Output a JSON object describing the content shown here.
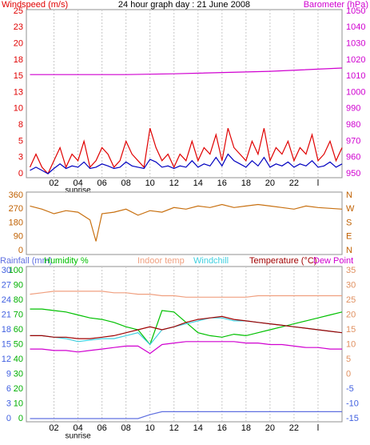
{
  "chart_data": [
    {
      "type": "line",
      "title": "24 hour graph day : 21 June 2008",
      "y_label": "Windspeed (m/s)",
      "y2_label": "Barometer (hPa)",
      "annotation": "sunrise",
      "annotation_x": 4,
      "xlim": [
        -0.3,
        26
      ],
      "xticks": [
        {
          "value": 2,
          "label": "02"
        },
        {
          "value": 4,
          "label": "04"
        },
        {
          "value": 6,
          "label": "06"
        },
        {
          "value": 8,
          "label": "08"
        },
        10,
        12,
        14,
        16,
        18,
        20,
        22,
        {
          "value": 24,
          "label": "l"
        }
      ],
      "ylim": [
        0,
        25
      ],
      "yticks": [
        0,
        {
          "value": 2.5,
          "label": "3"
        },
        5,
        {
          "value": 7.5,
          "label": "8"
        },
        10,
        {
          "value": 12.5,
          "label": "13"
        },
        15,
        {
          "value": 17.5,
          "label": "18"
        },
        20,
        {
          "value": 22.5,
          "label": "23"
        },
        25
      ],
      "y2lim": [
        950,
        1050
      ],
      "y2ticks": [
        950,
        960,
        970,
        980,
        990,
        1000,
        1010,
        1020,
        1030,
        1040,
        1050
      ],
      "y_color": "#e00000",
      "y2_color": "#d000d0",
      "series": [
        {
          "color": "#e00000",
          "axis": "y",
          "x": [
            0,
            0.5,
            1,
            1.5,
            2,
            2.5,
            3,
            3.5,
            4,
            4.5,
            5,
            5.5,
            6,
            6.5,
            7,
            7.5,
            8,
            8.5,
            9,
            9.5,
            10,
            10.5,
            11,
            11.5,
            12,
            12.5,
            13,
            13.5,
            14,
            14.5,
            15,
            15.5,
            16,
            16.5,
            17,
            17.5,
            18,
            18.5,
            19,
            19.5,
            20,
            20.5,
            21,
            21.5,
            22,
            22.5,
            23,
            23.5,
            24,
            24.5,
            25,
            25.5,
            26
          ],
          "values": [
            1,
            3,
            1,
            0,
            2,
            4,
            1,
            3,
            2,
            5,
            1,
            2,
            4,
            3,
            1,
            2,
            5,
            3,
            2,
            1,
            7,
            4,
            2,
            3,
            1,
            3,
            2,
            5,
            2,
            4,
            3,
            6,
            2,
            7,
            4,
            3,
            2,
            5,
            3,
            7,
            2,
            4,
            3,
            5,
            2,
            4,
            3,
            6,
            2,
            3,
            5,
            2,
            4
          ]
        },
        {
          "color": "#0000c0",
          "axis": "y",
          "x": [
            0,
            0.5,
            1,
            1.5,
            2,
            2.5,
            3,
            3.5,
            4,
            4.5,
            5,
            5.5,
            6,
            6.5,
            7,
            7.5,
            8,
            8.5,
            9,
            9.5,
            10,
            10.5,
            11,
            11.5,
            12,
            12.5,
            13,
            13.5,
            14,
            14.5,
            15,
            15.5,
            16,
            16.5,
            17,
            17.5,
            18,
            18.5,
            19,
            19.5,
            20,
            20.5,
            21,
            21.5,
            22,
            22.5,
            23,
            23.5,
            24,
            24.5,
            25,
            25.5,
            26
          ],
          "values": [
            0.5,
            1,
            0.5,
            0,
            0.8,
            1.5,
            0.8,
            1.2,
            1,
            1.8,
            0.8,
            1,
            1.5,
            1.2,
            0.8,
            1,
            1.8,
            1.2,
            1,
            0.8,
            2.2,
            1.8,
            1,
            1.2,
            0.8,
            1.2,
            1,
            2,
            1,
            1.5,
            1.2,
            2.5,
            1.2,
            3,
            2,
            1.5,
            1,
            2,
            1.2,
            2.5,
            1,
            1.5,
            1.2,
            1.8,
            1,
            1.5,
            1.2,
            2,
            1,
            1.2,
            1.8,
            1,
            1.5
          ]
        },
        {
          "color": "#d000d0",
          "axis": "y2",
          "x": [
            0,
            8,
            12,
            20,
            26
          ],
          "values": [
            1011,
            1011,
            1011.5,
            1013,
            1015
          ]
        }
      ]
    },
    {
      "type": "line",
      "xlim": [
        -0.3,
        26
      ],
      "ylim": [
        0,
        360
      ],
      "yticks": [
        0,
        90,
        180,
        270,
        360
      ],
      "y2ticks": [
        {
          "value": 0,
          "label": "N"
        },
        {
          "value": 90,
          "label": "E"
        },
        {
          "value": 180,
          "label": "S"
        },
        {
          "value": 270,
          "label": "W"
        },
        {
          "value": 360,
          "label": "N"
        }
      ],
      "y_color": "#c06000",
      "y2_color": "#c06000",
      "series": [
        {
          "color": "#c87010",
          "axis": "y",
          "x": [
            0,
            1,
            2,
            3,
            4,
            5,
            5.5,
            6,
            7,
            8,
            9,
            10,
            11,
            12,
            13,
            14,
            15,
            16,
            17,
            18,
            19,
            20,
            21,
            22,
            23,
            24,
            26
          ],
          "values": [
            290,
            270,
            240,
            260,
            250,
            200,
            60,
            240,
            250,
            270,
            230,
            260,
            250,
            280,
            270,
            290,
            280,
            300,
            280,
            290,
            300,
            290,
            280,
            270,
            290,
            280,
            270
          ]
        }
      ]
    },
    {
      "type": "line",
      "annotation": "sunrise",
      "annotation_x": 4,
      "xlim": [
        -0.3,
        26
      ],
      "xticks": [
        {
          "value": 2,
          "label": "02"
        },
        {
          "value": 4,
          "label": "04"
        },
        {
          "value": 6,
          "label": "06"
        },
        {
          "value": 8,
          "label": "08"
        },
        10,
        12,
        14,
        16,
        18,
        20,
        22,
        {
          "value": 24,
          "label": "l"
        }
      ],
      "ylim": [
        0,
        100
      ],
      "yticks": [
        0,
        10,
        20,
        30,
        40,
        50,
        60,
        70,
        80,
        90,
        100
      ],
      "y3lim": [
        0,
        30
      ],
      "y3ticks": [
        0,
        3,
        6,
        9,
        12,
        15,
        18,
        21,
        24,
        27,
        30
      ],
      "y2lim": [
        -15,
        35
      ],
      "y2ticks": [
        -15,
        -10,
        -5,
        0,
        5,
        10,
        15,
        20,
        25,
        30,
        35
      ],
      "y_color": "#00b000",
      "y3_color": "#4060e0",
      "y2_color": "#e09060",
      "series": [
        {
          "name": "Rainfall (mm)",
          "color": "#6070e0",
          "axis": "y3",
          "x": [
            0,
            1,
            2,
            3,
            4,
            5,
            6,
            7,
            8,
            9,
            10,
            11,
            12,
            13,
            14,
            15,
            16,
            17,
            18,
            19,
            20,
            21,
            22,
            23,
            24,
            25,
            26
          ],
          "values": [
            0,
            0,
            0,
            0,
            0,
            0,
            0,
            0,
            0,
            0,
            0.8,
            1.4,
            1.4,
            1.4,
            1.4,
            1.4,
            1.4,
            1.4,
            1.4,
            1.4,
            1.4,
            1.4,
            1.4,
            1.4,
            1.4,
            1.4,
            1.4
          ]
        },
        {
          "name": "Humidity %",
          "color": "#00c000",
          "axis": "y",
          "x": [
            0,
            1,
            2,
            3,
            4,
            5,
            6,
            7,
            8,
            9,
            10,
            11,
            12,
            13,
            14,
            15,
            16,
            17,
            18,
            19,
            20,
            21,
            22,
            23,
            24,
            25,
            26
          ],
          "values": [
            74,
            74,
            73,
            72,
            70,
            68,
            67,
            65,
            62,
            60,
            50,
            73,
            72,
            65,
            58,
            56,
            55,
            57,
            56,
            58,
            60,
            62,
            64,
            66,
            68,
            70,
            72
          ]
        },
        {
          "name": "Indoor temp",
          "color": "#f0a080",
          "axis": "y2",
          "x": [
            0,
            1,
            2,
            3,
            4,
            5,
            6,
            7,
            8,
            9,
            10,
            11,
            12,
            13,
            14,
            15,
            16,
            17,
            18,
            19,
            20,
            21,
            22,
            23,
            24,
            25,
            26
          ],
          "values": [
            27,
            27.5,
            28,
            28,
            28,
            28,
            28,
            27.5,
            27.5,
            27,
            27,
            26.5,
            26.5,
            26,
            26,
            26,
            26,
            26,
            26,
            26.5,
            26.5,
            26.5,
            26.5,
            26.5,
            26.5,
            26.5,
            26.5
          ]
        },
        {
          "name": "Windchill",
          "color": "#40d0e0",
          "axis": "y2",
          "x": [
            0,
            1,
            2,
            3,
            4,
            5,
            6,
            7,
            8,
            9,
            10,
            11,
            12,
            13,
            14,
            15,
            16,
            17,
            18,
            19,
            20,
            21,
            22,
            23,
            24,
            25,
            26
          ],
          "values": [
            13,
            13,
            12.5,
            12,
            11,
            11.5,
            12,
            12,
            13,
            14,
            10,
            15,
            16,
            17,
            18,
            19,
            19,
            18,
            18,
            17.5,
            17,
            16.5,
            16,
            15.5,
            15,
            14.5,
            14
          ]
        },
        {
          "name": "Temperature (°C)",
          "color": "#a00000",
          "axis": "y2",
          "x": [
            0,
            1,
            2,
            3,
            4,
            5,
            6,
            7,
            8,
            9,
            10,
            11,
            12,
            13,
            14,
            15,
            16,
            17,
            18,
            19,
            20,
            21,
            22,
            23,
            24,
            25,
            26
          ],
          "values": [
            13,
            13,
            12.5,
            12.5,
            12,
            12,
            12.5,
            13,
            14,
            15,
            16,
            15,
            16,
            17.5,
            18.5,
            19,
            19.5,
            18.5,
            18,
            17.5,
            17,
            16.5,
            16,
            15.5,
            15,
            14.5,
            14
          ]
        },
        {
          "name": "Dew Point",
          "color": "#d000d0",
          "axis": "y2",
          "x": [
            0,
            1,
            2,
            3,
            4,
            5,
            6,
            7,
            8,
            9,
            10,
            11,
            12,
            13,
            14,
            15,
            16,
            17,
            18,
            19,
            20,
            21,
            22,
            23,
            24,
            25,
            26
          ],
          "values": [
            8.5,
            8.5,
            8,
            8,
            7.5,
            8,
            8.5,
            9,
            9.5,
            9.5,
            7,
            10,
            10.5,
            11,
            11,
            11,
            11,
            11,
            10.5,
            10.5,
            10,
            10,
            9.5,
            9,
            9,
            8.5,
            8.5
          ]
        }
      ]
    }
  ]
}
